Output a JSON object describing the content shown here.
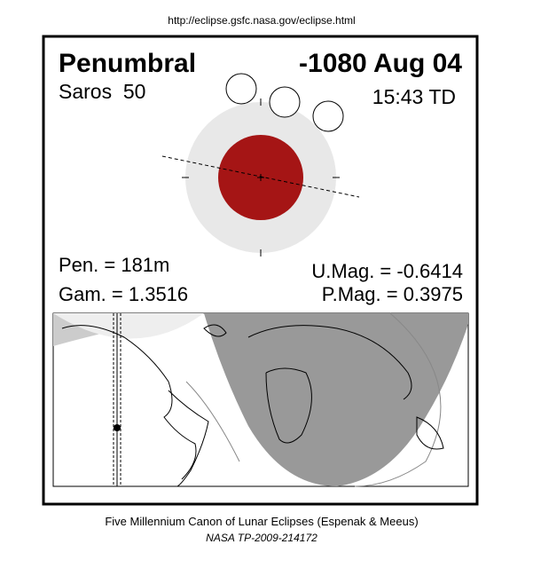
{
  "url": "http://eclipse.gsfc.nasa.gov/eclipse.html",
  "header": {
    "type": "Penumbral",
    "date": "-1080 Aug 04",
    "saros": "Saros  50",
    "time": "15:43 TD"
  },
  "parameters": {
    "pen": "Pen. = 181m",
    "gam": "Gam. = 1.3516",
    "umag": "U.Mag. = -0.6414",
    "pmag": "P.Mag. = 0.3975"
  },
  "footer": {
    "line1": "Five Millennium Canon of Lunar Eclipses (Espenak & Meeus)",
    "line2": "NASA TP-2009-214172"
  }
}
